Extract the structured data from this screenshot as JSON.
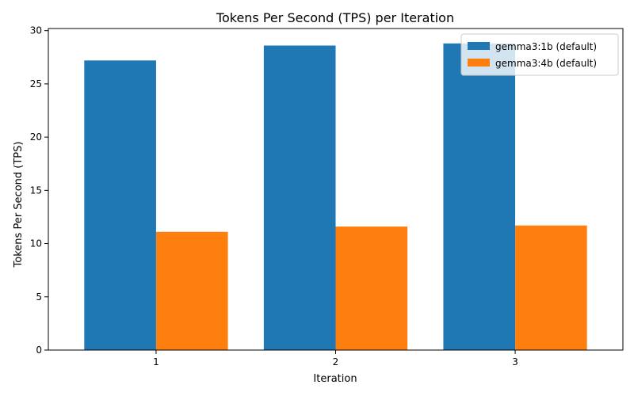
{
  "chart_data": {
    "type": "bar",
    "title": "Tokens Per Second (TPS) per Iteration",
    "xlabel": "Iteration",
    "ylabel": "Tokens Per Second (TPS)",
    "categories": [
      "1",
      "2",
      "3"
    ],
    "series": [
      {
        "name": "gemma3:1b (default)",
        "color": "#1f77b4",
        "values": [
          27.2,
          28.6,
          28.8
        ]
      },
      {
        "name": "gemma3:4b (default)",
        "color": "#ff7f0e",
        "values": [
          11.1,
          11.6,
          11.7
        ]
      }
    ],
    "ylim": [
      0,
      30.2
    ],
    "yticks": [
      0,
      5,
      10,
      15,
      20,
      25,
      30
    ],
    "grid": false,
    "legend_position": "top-right"
  }
}
